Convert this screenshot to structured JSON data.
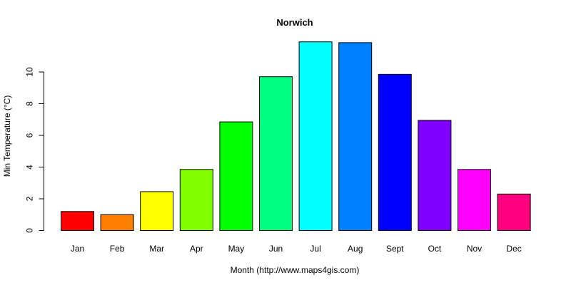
{
  "chart_data": {
    "type": "bar",
    "title": "Norwich",
    "xlabel": "Month (http://www.maps4gis.com)",
    "ylabel": "Min Temperature (°C)",
    "categories": [
      "Jan",
      "Feb",
      "Mar",
      "Apr",
      "May",
      "Jun",
      "Jul",
      "Aug",
      "Sept",
      "Oct",
      "Nov",
      "Dec"
    ],
    "values": [
      1.2,
      1.0,
      2.45,
      3.85,
      6.85,
      9.7,
      11.9,
      11.85,
      9.85,
      6.95,
      3.85,
      2.3
    ],
    "colors": [
      "#FF0000",
      "#FF8000",
      "#FFFF00",
      "#80FF00",
      "#00FF00",
      "#00FF80",
      "#00FFFF",
      "#0080FF",
      "#0000FF",
      "#8000FF",
      "#FF00FF",
      "#FF0080"
    ],
    "yticks": [
      "0",
      "2",
      "4",
      "6",
      "8",
      "10"
    ],
    "ylim": [
      0,
      12
    ],
    "grid": false,
    "legend": "none"
  }
}
